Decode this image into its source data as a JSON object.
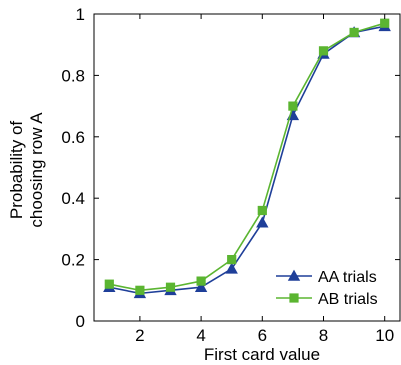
{
  "chart_data": {
    "type": "line",
    "xlabel": "First card value",
    "ylabel_lines": [
      "Probability of",
      "choosing row A"
    ],
    "xlim": [
      0.5,
      10.5
    ],
    "ylim": [
      0,
      1
    ],
    "xticks": [
      2,
      4,
      6,
      8,
      10
    ],
    "yticks": [
      0,
      0.2,
      0.4,
      0.6,
      0.8,
      1
    ],
    "ytick_labels": [
      "0",
      "0.2",
      "0.4",
      "0.6",
      "0.8",
      "1"
    ],
    "grid": false,
    "legend_position": "bottom-right",
    "x": [
      1,
      2,
      3,
      4,
      5,
      6,
      7,
      8,
      9,
      10
    ],
    "series": [
      {
        "name": "AA trials",
        "color": "#1f3f99",
        "marker": "triangle",
        "values": [
          0.11,
          0.09,
          0.1,
          0.11,
          0.17,
          0.32,
          0.67,
          0.87,
          0.94,
          0.96
        ]
      },
      {
        "name": "AB trials",
        "color": "#5bb531",
        "marker": "square",
        "values": [
          0.12,
          0.1,
          0.11,
          0.13,
          0.2,
          0.36,
          0.7,
          0.88,
          0.94,
          0.97
        ]
      }
    ]
  }
}
